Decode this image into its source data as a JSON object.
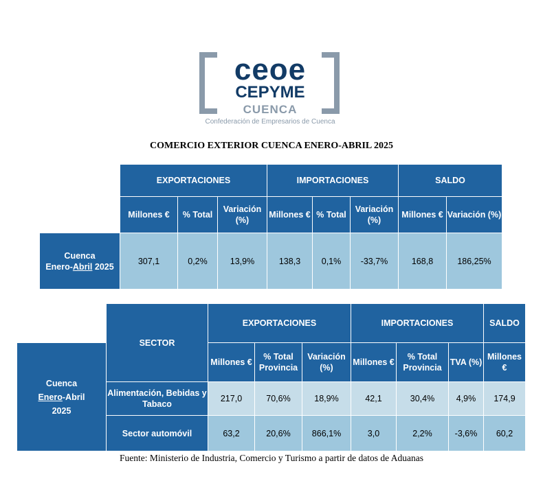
{
  "logo": {
    "line1": "ceoe",
    "line2": "CEPYME",
    "line3": "CUENCA",
    "tagline": "Confederación de Empresarios de Cuenca"
  },
  "title": "COMERCIO EXTERIOR CUENCA ENERO-ABRIL 2025",
  "table1": {
    "groups": {
      "exports": "EXPORTACIONES",
      "imports": "IMPORTACIONES",
      "saldo": "SALDO"
    },
    "subheaders": {
      "exp_millones": "Millones €",
      "exp_total": "% Total",
      "exp_variacion": "Variación (%)",
      "imp_millones": "Millones €",
      "imp_total": "% Total",
      "imp_variacion": "Variación (%)",
      "saldo_millones": "Millones €",
      "saldo_variacion": "Variación (%)"
    },
    "row_label": {
      "line1": "Cuenca",
      "pre": "Enero-",
      "abril": "Abril",
      "post": " 2025"
    },
    "values": {
      "exp_millones": "307,1",
      "exp_total": "0,2%",
      "exp_variacion": "13,9%",
      "imp_millones": "138,3",
      "imp_total": "0,1%",
      "imp_variacion": "-33,7%",
      "saldo_millones": "168,8",
      "saldo_variacion": "186,25%"
    }
  },
  "table2": {
    "sector_header": "SECTOR",
    "groups": {
      "exports": "EXPORTACIONES",
      "imports": "IMPORTACIONES",
      "saldo": "SALDO"
    },
    "subheaders": {
      "exp_millones": "Millones €",
      "exp_total": "% Total Provincia",
      "exp_variacion": "Variación (%)",
      "imp_millones": "Millones €",
      "imp_total": "% Total Provincia",
      "imp_tva": "TVA (%)",
      "saldo_millones": "Millones €"
    },
    "side_label": {
      "line1": "Cuenca",
      "enero": "Enero",
      "post": "-Abril",
      "line3": "2025"
    },
    "rows": [
      {
        "sector": "Alimentación, Bebidas y Tabaco",
        "exp_millones": "217,0",
        "exp_total": "70,6%",
        "exp_variacion": "18,9%",
        "imp_millones": "42,1",
        "imp_total": "30,4%",
        "imp_tva": "4,9%",
        "saldo_millones": "174,9"
      },
      {
        "sector": "Sector automóvil",
        "exp_millones": "63,2",
        "exp_total": "20,6%",
        "exp_variacion": "866,1%",
        "imp_millones": "3,0",
        "imp_total": "2,2%",
        "imp_tva": "-3,6%",
        "saldo_millones": "60,2"
      }
    ]
  },
  "source": "Fuente: Ministerio de Industria, Comercio y Turismo a partir de datos de Aduanas",
  "colors": {
    "header": "#2063a0",
    "cell_dark": "#9ec7dd",
    "cell_light": "#c6dde9",
    "logo_blue": "#123b66",
    "logo_gray": "#8a9aaa"
  }
}
